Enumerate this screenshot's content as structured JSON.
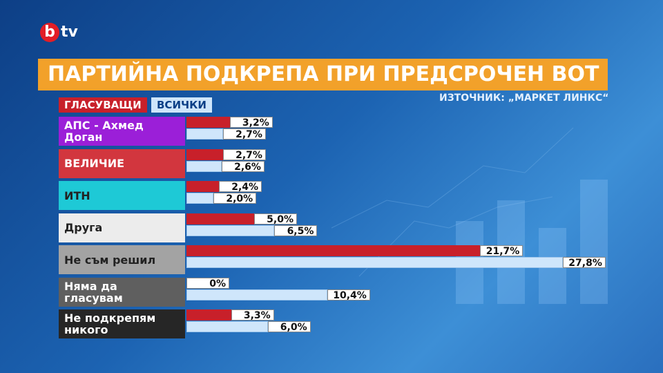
{
  "logo": {
    "mark": "b",
    "text": "tv"
  },
  "chart_data": {
    "type": "bar",
    "orientation": "horizontal",
    "title": "ПАРТИЙНА ПОДКРЕПА ПРИ ПРЕДСРОЧЕН ВОТ",
    "source": "ИЗТОЧНИК: „МАРКЕТ ЛИНКС“",
    "categories": [
      "АПС - Ахмед Доган",
      "ВЕЛИЧИЕ",
      "ИТН",
      "Друга",
      "Не съм решил",
      "Няма да гласувам",
      "Не подкрепям никого"
    ],
    "category_colors": [
      "#9b1fd8",
      "#d2363e",
      "#1ec9d6",
      "#ececec",
      "#a3a3a3",
      "#5f5f5f",
      "#262626"
    ],
    "series": [
      {
        "name": "ГЛАСУВАЩИ",
        "color": "#c8202a",
        "values": [
          3.2,
          2.7,
          2.4,
          5.0,
          21.7,
          0,
          3.3
        ],
        "value_labels": [
          "3,2%",
          "2,7%",
          "2,4%",
          "5,0%",
          "21,7%",
          "0%",
          "3,3%"
        ]
      },
      {
        "name": "ВСИЧКИ",
        "color": "#cfe6fb",
        "values": [
          2.7,
          2.6,
          2.0,
          6.5,
          27.8,
          10.4,
          6.0
        ],
        "value_labels": [
          "2,7%",
          "2,6%",
          "2,0%",
          "6,5%",
          "27,8%",
          "10,4%",
          "6,0%"
        ]
      }
    ]
  }
}
